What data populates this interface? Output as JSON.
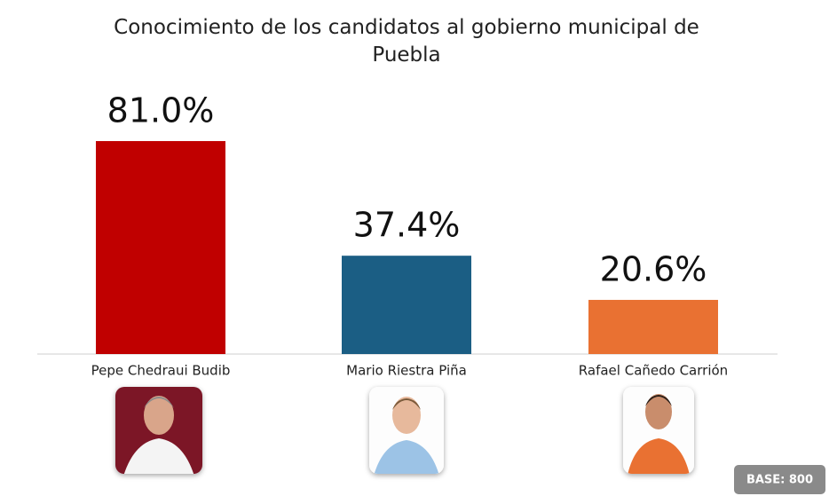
{
  "chart_data": {
    "type": "bar",
    "title": "Conocimiento de los candidatos al gobierno municipal de Puebla",
    "categories": [
      "Pepe Chedraui Budib",
      "Mario Riestra Piña",
      "Rafael Cañedo Carrión"
    ],
    "values": [
      81.0,
      37.4,
      20.6
    ],
    "value_labels": [
      "81.0%",
      "37.4%",
      "20.6%"
    ],
    "colors": [
      "#c00000",
      "#1b5e84",
      "#e97132"
    ],
    "note": "BASE: 800"
  }
}
